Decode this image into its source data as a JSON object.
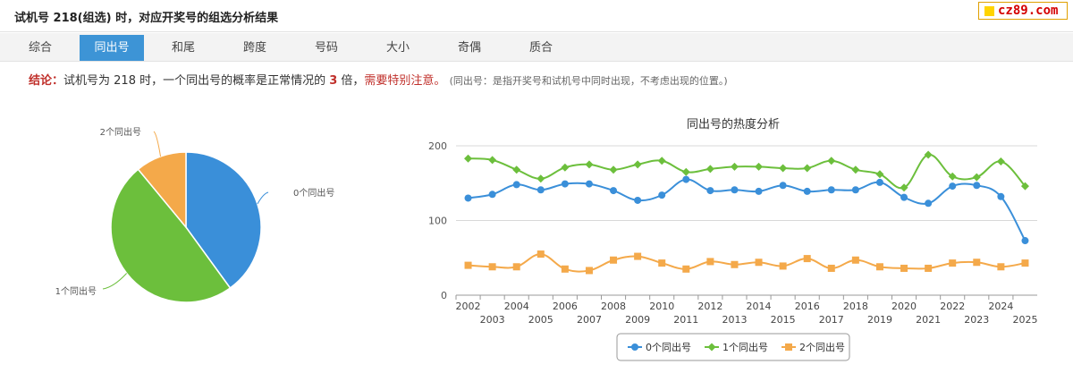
{
  "header": {
    "title": "试机号 218(组选) 时，对应开奖号的组选分析结果"
  },
  "logo": {
    "text": "cz89.com"
  },
  "tabs": [
    {
      "label": "综合",
      "active": false
    },
    {
      "label": "同出号",
      "active": true
    },
    {
      "label": "和尾",
      "active": false
    },
    {
      "label": "跨度",
      "active": false
    },
    {
      "label": "号码",
      "active": false
    },
    {
      "label": "大小",
      "active": false
    },
    {
      "label": "奇偶",
      "active": false
    },
    {
      "label": "质合",
      "active": false
    }
  ],
  "conclusion": {
    "label": "结论：",
    "text_before": "试机号为 218 时，一个同出号的概率是正常情况的 ",
    "multiple": "3",
    "text_after": " 倍，",
    "warning": "需要特别注意。",
    "note": "(同出号：是指开奖号和试机号中同时出现，不考虑出现的位置。)"
  },
  "colors": {
    "blue": "#3a8fd9",
    "green": "#6cbf3c",
    "orange": "#f4a94a",
    "tab_active": "#3d94d6"
  },
  "chart_data": [
    {
      "type": "pie",
      "labels": [
        "0个同出号",
        "1个同出号",
        "2个同出号"
      ],
      "values": [
        40,
        49,
        11
      ],
      "colors": [
        "#3a8fd9",
        "#6cbf3c",
        "#f4a94a"
      ]
    },
    {
      "type": "line",
      "title": "同出号的热度分析",
      "x": [
        2002,
        2003,
        2004,
        2005,
        2006,
        2007,
        2008,
        2009,
        2010,
        2011,
        2012,
        2013,
        2014,
        2015,
        2016,
        2017,
        2018,
        2019,
        2020,
        2021,
        2022,
        2023,
        2024,
        2025
      ],
      "x_tick_labels": [
        "2002",
        "2003",
        "2004",
        "2005",
        "2006",
        "2007",
        "2008",
        "2009",
        "2010",
        "2011",
        "2012",
        "2013",
        "2014",
        "2015",
        "2016",
        "2017",
        "2018",
        "2019",
        "2020",
        "2021",
        "2022",
        "2023",
        "2024",
        "2025"
      ],
      "ylim": [
        0,
        200
      ],
      "y_ticks": [
        "0",
        "100",
        "200"
      ],
      "grid": true,
      "legend": "bottom",
      "series": [
        {
          "name": "0个同出号",
          "color": "#3a8fd9",
          "marker": "circle",
          "values": [
            130,
            135,
            148,
            141,
            149,
            149,
            140,
            127,
            134,
            155,
            140,
            141,
            139,
            147,
            139,
            141,
            141,
            151,
            131,
            123,
            146,
            147,
            132,
            73
          ]
        },
        {
          "name": "1个同出号",
          "color": "#6cbf3c",
          "marker": "diamond",
          "values": [
            183,
            181,
            168,
            156,
            171,
            175,
            168,
            175,
            180,
            165,
            169,
            172,
            172,
            170,
            170,
            180,
            168,
            162,
            144,
            188,
            159,
            158,
            179,
            146
          ]
        },
        {
          "name": "2个同出号",
          "color": "#f4a94a",
          "marker": "square",
          "values": [
            40,
            38,
            38,
            55,
            35,
            33,
            47,
            52,
            43,
            35,
            45,
            41,
            44,
            39,
            49,
            36,
            47,
            38,
            36,
            36,
            43,
            44,
            38,
            43
          ]
        }
      ]
    }
  ]
}
